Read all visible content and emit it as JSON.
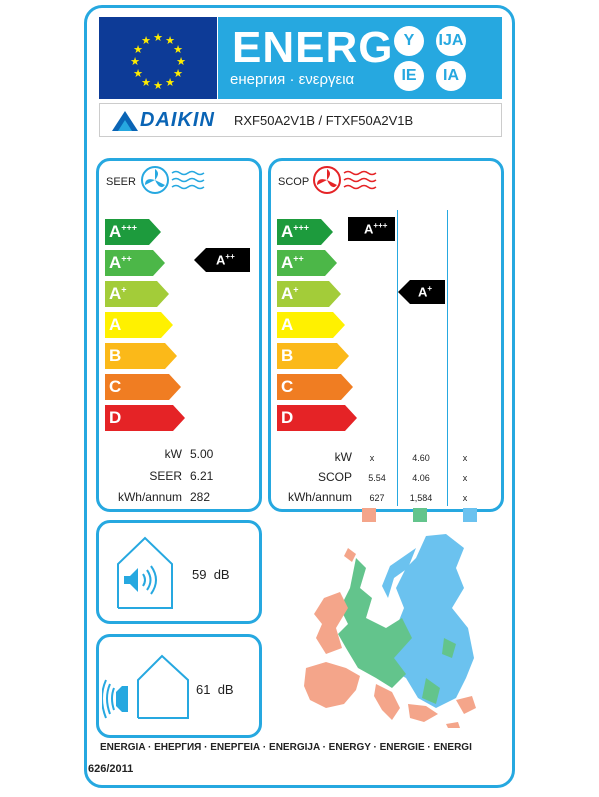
{
  "header": {
    "title": "ENERG",
    "subtitle": "енергия · ενεργεια",
    "languages": [
      "Y",
      "IJA",
      "IE",
      "IA"
    ]
  },
  "supplier": {
    "brand": "DAIKIN",
    "model": "RXF50A2V1B / FTXF50A2V1B"
  },
  "cooling": {
    "label": "SEER",
    "classes": [
      {
        "main": "A",
        "sup": "+++",
        "color": "#1d9b3d"
      },
      {
        "main": "A",
        "sup": "++",
        "color": "#4cb748"
      },
      {
        "main": "A",
        "sup": "+",
        "color": "#a3cc39"
      },
      {
        "main": "A",
        "sup": "",
        "color": "#fff100"
      },
      {
        "main": "B",
        "sup": "",
        "color": "#fbb919"
      },
      {
        "main": "C",
        "sup": "",
        "color": "#f07d22"
      },
      {
        "main": "D",
        "sup": "",
        "color": "#e52326"
      }
    ],
    "rating": {
      "main": "A",
      "sup": "++"
    },
    "rows": [
      {
        "label": "kW",
        "value": "5.00"
      },
      {
        "label": "SEER",
        "value": "6.21"
      },
      {
        "label": "kWh/annum",
        "value": "282"
      }
    ]
  },
  "heating": {
    "label": "SCOP",
    "rating_warm": {
      "main": "A",
      "sup": "+++"
    },
    "rating_average": {
      "main": "A",
      "sup": "+"
    },
    "rows": [
      {
        "label": "kW",
        "values": [
          "x",
          "4.60",
          "x"
        ]
      },
      {
        "label": "SCOP",
        "values": [
          "5.54",
          "4.06",
          "x"
        ]
      },
      {
        "label": "kWh/annum",
        "values": [
          "627",
          "1,584",
          "x"
        ]
      }
    ],
    "zone_colors": [
      "#f4a58a",
      "#63c48c",
      "#6bc2ef"
    ]
  },
  "noise": {
    "indoor": {
      "value": "59",
      "unit": "dB"
    },
    "outdoor": {
      "value": "61",
      "unit": "dB"
    }
  },
  "footer": {
    "languages": "ENERGIA · ЕНЕРГИЯ · ΕΝΕΡΓΕΙΑ · ENERGIJA · ENERGY · ENERGIE · ENERGI",
    "regulation": "626/2011"
  }
}
